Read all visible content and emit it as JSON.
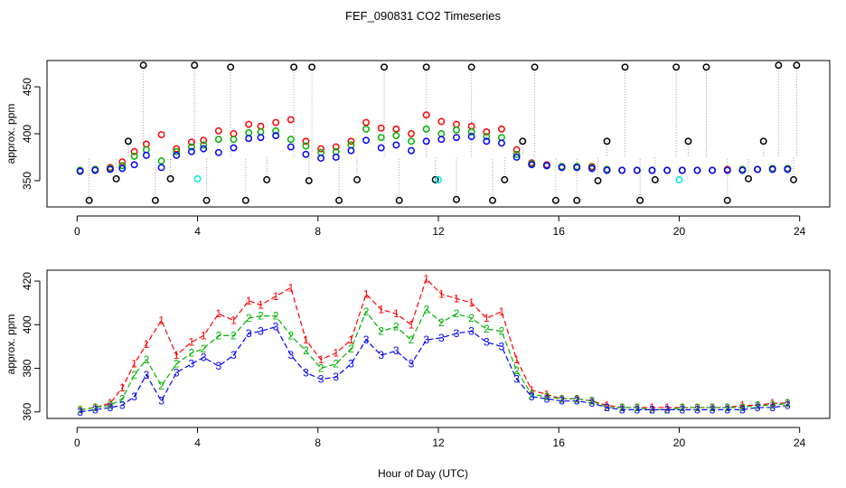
{
  "chart_data": [
    {
      "type": "scatter",
      "title": "FEF_090831  CO2 Timeseries",
      "ylabel": "approx. ppm",
      "xlim": [
        -1,
        25
      ],
      "ylim": [
        322,
        478
      ],
      "x_ticks": [
        0,
        4,
        8,
        12,
        16,
        20,
        24
      ],
      "x_tick_labels": [
        "0",
        "4",
        "8",
        "12",
        "16",
        "20",
        "24"
      ],
      "y_ticks": [
        350,
        400,
        450
      ],
      "y_tick_labels": [
        "350",
        "400",
        "450"
      ],
      "series": [
        {
          "name": "series-1",
          "marker": "circle",
          "color": "#ff0000",
          "x": [
            0.1,
            0.6,
            1.1,
            1.5,
            1.9,
            2.3,
            2.8,
            3.3,
            3.8,
            4.2,
            4.7,
            5.2,
            5.7,
            6.1,
            6.6,
            7.1,
            7.6,
            8.1,
            8.6,
            9.1,
            9.6,
            10.1,
            10.6,
            11.1,
            11.6,
            12.1,
            12.6,
            13.1,
            13.6,
            14.1,
            14.6,
            15.1,
            15.6,
            16.1,
            16.6,
            17.1,
            17.6,
            18.1,
            18.6,
            19.1,
            19.6,
            20.1,
            20.6,
            21.1,
            21.6,
            22.1,
            22.6,
            23.1,
            23.6
          ],
          "y": [
            361,
            362,
            364,
            370,
            381,
            389,
            399,
            384,
            391,
            393,
            403,
            400,
            410,
            408,
            412,
            415,
            392,
            384,
            386,
            392,
            412,
            406,
            405,
            400,
            420,
            413,
            410,
            408,
            402,
            405,
            383,
            369,
            367,
            365,
            365,
            365,
            362,
            361,
            361,
            361,
            361,
            361,
            361,
            361,
            362,
            362,
            362,
            363,
            363
          ]
        },
        {
          "name": "series-2",
          "marker": "circle",
          "color": "#00b000",
          "x": [
            0.1,
            0.6,
            1.1,
            1.5,
            1.9,
            2.3,
            2.8,
            3.3,
            3.8,
            4.2,
            4.7,
            5.2,
            5.7,
            6.1,
            6.6,
            7.1,
            7.6,
            8.1,
            8.6,
            9.1,
            9.6,
            10.1,
            10.6,
            11.1,
            11.6,
            12.1,
            12.6,
            13.1,
            13.6,
            14.1,
            14.6,
            15.1,
            15.6,
            16.1,
            16.6,
            17.1,
            17.6,
            18.1,
            18.6,
            19.1,
            19.6,
            20.1,
            20.6,
            21.1,
            21.6,
            22.1,
            22.6,
            23.1,
            23.6
          ],
          "y": [
            361,
            362,
            363,
            366,
            376,
            383,
            371,
            381,
            386,
            388,
            394,
            394,
            401,
            402,
            403,
            394,
            387,
            380,
            381,
            388,
            405,
            396,
            398,
            392,
            405,
            400,
            404,
            402,
            397,
            396,
            378,
            368,
            366,
            365,
            365,
            364,
            362,
            361,
            361,
            361,
            361,
            361,
            361,
            361,
            361,
            362,
            362,
            363,
            363
          ]
        },
        {
          "name": "series-3",
          "marker": "circle",
          "color": "#0000ff",
          "x": [
            0.1,
            0.6,
            1.1,
            1.5,
            1.9,
            2.3,
            2.8,
            3.3,
            3.8,
            4.2,
            4.7,
            5.2,
            5.7,
            6.1,
            6.6,
            7.1,
            7.6,
            8.1,
            8.6,
            9.1,
            9.6,
            10.1,
            10.6,
            11.1,
            11.6,
            12.1,
            12.6,
            13.1,
            13.6,
            14.1,
            14.6,
            15.1,
            15.6,
            16.1,
            16.6,
            17.1,
            17.6,
            18.1,
            18.6,
            19.1,
            19.6,
            20.1,
            20.6,
            21.1,
            21.6,
            22.1,
            22.6,
            23.1,
            23.6
          ],
          "y": [
            360,
            361,
            362,
            363,
            367,
            377,
            364,
            377,
            381,
            384,
            380,
            385,
            395,
            396,
            398,
            386,
            378,
            374,
            375,
            382,
            393,
            385,
            388,
            382,
            392,
            394,
            396,
            397,
            392,
            390,
            375,
            367,
            366,
            364,
            364,
            363,
            361,
            361,
            361,
            361,
            361,
            361,
            361,
            361,
            361,
            361,
            362,
            362,
            362
          ]
        },
        {
          "name": "series-outliers",
          "marker": "circle",
          "color": "#000000",
          "x": [
            0.4,
            1.3,
            1.7,
            2.2,
            2.6,
            3.1,
            3.9,
            4.3,
            5.1,
            5.6,
            6.3,
            7.2,
            7.7,
            7.8,
            8.7,
            9.3,
            10.2,
            10.7,
            11.6,
            11.9,
            12.6,
            13.1,
            13.8,
            14.2,
            14.8,
            15.2,
            15.9,
            16.6,
            17.3,
            17.6,
            18.2,
            18.7,
            19.2,
            19.9,
            20.3,
            20.9,
            21.6,
            22.3,
            22.8,
            23.3,
            23.8,
            23.9
          ],
          "y": [
            329,
            352,
            392,
            473,
            329,
            352,
            473,
            329,
            471,
            329,
            351,
            471,
            350,
            471,
            329,
            351,
            471,
            329,
            471,
            351,
            330,
            471,
            329,
            351,
            392,
            471,
            329,
            329,
            350,
            392,
            471,
            329,
            351,
            471,
            392,
            471,
            329,
            352,
            392,
            473,
            351,
            473
          ]
        },
        {
          "name": "series-cyan",
          "marker": "circle",
          "color": "#00e5e5",
          "x": [
            4.0,
            12.0,
            20.0
          ],
          "y": [
            352,
            351,
            351
          ]
        }
      ]
    },
    {
      "type": "line",
      "title": "",
      "xlabel": "Hour of Day (UTC)",
      "ylabel": "approx. ppm",
      "xlim": [
        -1,
        25
      ],
      "ylim": [
        357,
        425
      ],
      "x_ticks": [
        0,
        4,
        8,
        12,
        16,
        20,
        24
      ],
      "x_tick_labels": [
        "0",
        "4",
        "8",
        "12",
        "16",
        "20",
        "24"
      ],
      "y_ticks": [
        360,
        380,
        400,
        420
      ],
      "y_tick_labels": [
        "360",
        "380",
        "400",
        "420"
      ],
      "series": [
        {
          "name": "1",
          "marker": "1",
          "color": "#ff0000",
          "x": [
            0.1,
            0.6,
            1.1,
            1.5,
            1.9,
            2.3,
            2.8,
            3.3,
            3.8,
            4.2,
            4.7,
            5.2,
            5.7,
            6.1,
            6.6,
            7.1,
            7.6,
            8.1,
            8.6,
            9.1,
            9.6,
            10.1,
            10.6,
            11.1,
            11.6,
            12.1,
            12.6,
            13.1,
            13.6,
            14.1,
            14.6,
            15.1,
            15.6,
            16.1,
            16.6,
            17.1,
            17.6,
            18.1,
            18.6,
            19.1,
            19.6,
            20.1,
            20.6,
            21.1,
            21.6,
            22.1,
            22.6,
            23.1,
            23.6
          ],
          "y": [
            361,
            362,
            364,
            371,
            382,
            391,
            402,
            386,
            392,
            395,
            405,
            402,
            411,
            409,
            413,
            417,
            393,
            384,
            387,
            393,
            414,
            407,
            405,
            400,
            421,
            414,
            412,
            410,
            403,
            406,
            384,
            370,
            368,
            366,
            366,
            365,
            363,
            362,
            362,
            362,
            362,
            362,
            362,
            362,
            362,
            363,
            363,
            364,
            364
          ]
        },
        {
          "name": "2",
          "marker": "2",
          "color": "#00b000",
          "x": [
            0.1,
            0.6,
            1.1,
            1.5,
            1.9,
            2.3,
            2.8,
            3.3,
            3.8,
            4.2,
            4.7,
            5.2,
            5.7,
            6.1,
            6.6,
            7.1,
            7.6,
            8.1,
            8.6,
            9.1,
            9.6,
            10.1,
            10.6,
            11.1,
            11.6,
            12.1,
            12.6,
            13.1,
            13.6,
            14.1,
            14.6,
            15.1,
            15.6,
            16.1,
            16.6,
            17.1,
            17.6,
            18.1,
            18.6,
            19.1,
            19.6,
            20.1,
            20.6,
            21.1,
            21.6,
            22.1,
            22.6,
            23.1,
            23.6
          ],
          "y": [
            361,
            362,
            363,
            366,
            377,
            384,
            372,
            382,
            387,
            389,
            395,
            395,
            403,
            404,
            404,
            395,
            388,
            380,
            382,
            389,
            406,
            397,
            399,
            393,
            407,
            401,
            405,
            403,
            398,
            397,
            379,
            368,
            367,
            366,
            366,
            365,
            362,
            362,
            362,
            361,
            361,
            362,
            362,
            362,
            362,
            362,
            363,
            363,
            364
          ]
        },
        {
          "name": "3",
          "marker": "3",
          "color": "#0000ff",
          "x": [
            0.1,
            0.6,
            1.1,
            1.5,
            1.9,
            2.3,
            2.8,
            3.3,
            3.8,
            4.2,
            4.7,
            5.2,
            5.7,
            6.1,
            6.6,
            7.1,
            7.6,
            8.1,
            8.6,
            9.1,
            9.6,
            10.1,
            10.6,
            11.1,
            11.6,
            12.1,
            12.6,
            13.1,
            13.6,
            14.1,
            14.6,
            15.1,
            15.6,
            16.1,
            16.6,
            17.1,
            17.6,
            18.1,
            18.6,
            19.1,
            19.6,
            20.1,
            20.6,
            21.1,
            21.6,
            22.1,
            22.6,
            23.1,
            23.6
          ],
          "y": [
            360,
            361,
            362,
            363,
            367,
            377,
            365,
            378,
            382,
            385,
            381,
            386,
            396,
            397,
            399,
            386,
            378,
            375,
            376,
            382,
            393,
            386,
            388,
            382,
            393,
            394,
            396,
            397,
            392,
            390,
            375,
            367,
            366,
            365,
            365,
            364,
            362,
            361,
            361,
            361,
            361,
            361,
            361,
            361,
            361,
            361,
            362,
            362,
            363
          ]
        }
      ]
    }
  ]
}
